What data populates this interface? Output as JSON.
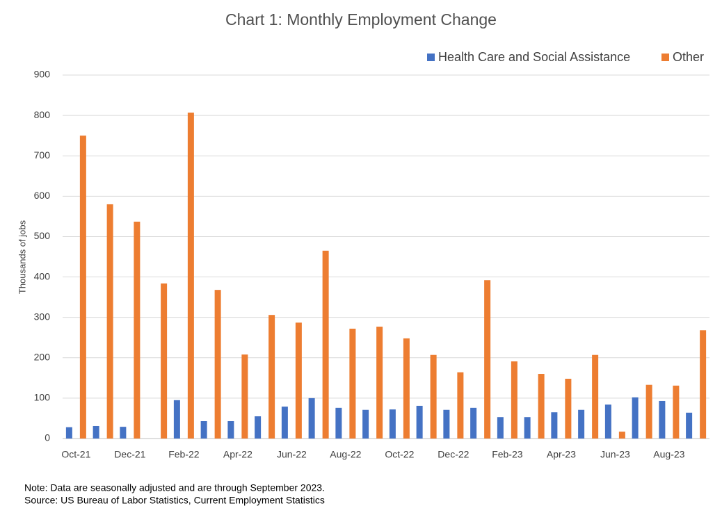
{
  "chart_data": {
    "type": "bar",
    "title": "Chart 1: Monthly Employment Change",
    "y_label": "Thousands of jobs",
    "notes": [
      "Note: Data are seasonally adjusted and are through September 2023.",
      "Source: US Bureau of Labor Statistics, Current Employment Statistics"
    ],
    "categories": [
      "Oct-21",
      null,
      "Dec-21",
      null,
      "Feb-22",
      null,
      "Apr-22",
      null,
      "Jun-22",
      null,
      "Aug-22",
      null,
      "Oct-22",
      null,
      "Dec-22",
      null,
      "Feb-23",
      null,
      "Apr-23",
      null,
      "Jun-23",
      null,
      "Aug-23",
      null
    ],
    "series": [
      {
        "name": "Health Care and Social Assistance",
        "color": "#4472c4",
        "values": [
          28,
          31,
          29,
          0,
          95,
          43,
          43,
          55,
          79,
          100,
          76,
          71,
          72,
          81,
          71,
          76,
          53,
          53,
          65,
          71,
          84,
          102,
          93,
          64
        ]
      },
      {
        "name": "Other",
        "color": "#ed7d31",
        "values": [
          750,
          580,
          537,
          384,
          807,
          368,
          208,
          306,
          287,
          465,
          272,
          277,
          248,
          207,
          164,
          392,
          191,
          160,
          148,
          207,
          17,
          133,
          131,
          268
        ]
      }
    ],
    "ylim": [
      0,
      900
    ],
    "yticks": [
      0,
      100,
      200,
      300,
      400,
      500,
      600,
      700,
      800,
      900
    ],
    "grid": true,
    "legend": "top-right"
  }
}
